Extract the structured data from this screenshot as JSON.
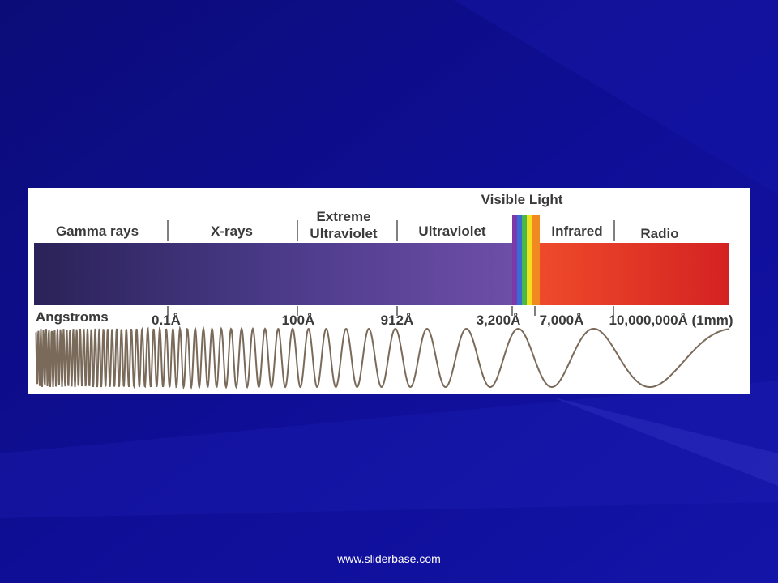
{
  "diagram": {
    "title": "Visible Light",
    "bands": [
      [
        "Gamma rays"
      ],
      [
        "X-rays"
      ],
      [
        "Extreme",
        "Ultraviolet"
      ],
      [
        "Ultraviolet"
      ],
      [
        "Infrared"
      ],
      [
        "Radio"
      ]
    ],
    "scale_label": "Angstroms",
    "wavelengths": [
      "0.1Å",
      "100Å",
      "912Å",
      "3,200Å",
      "7,000Å",
      "10,000,000Å (1mm)"
    ]
  },
  "footer": "www.sliderbase.com"
}
